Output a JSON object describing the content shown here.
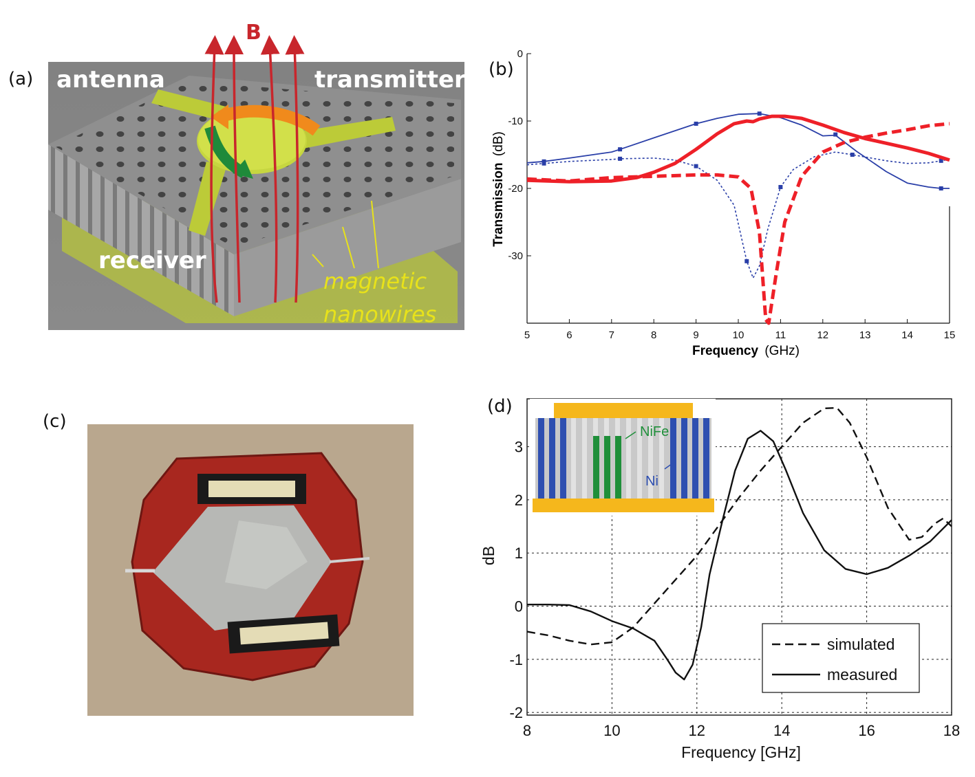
{
  "panel_labels": {
    "a": "(a)",
    "b": "(b)",
    "c": "(c)",
    "d": "(d)"
  },
  "panel_a": {
    "labels": {
      "field": "B",
      "antenna": "antenna",
      "transmitter": "transmitter",
      "receiver": "receiver",
      "wires_line1": "magnetic",
      "wires_line2": "nanowires"
    },
    "colors": {
      "field_lines": "#c8262c",
      "nanowires_label": "#e8e21a",
      "antenna_metal": "#c9d83c",
      "orange_arrow": "#f08a1c",
      "green_arrow": "#1f8a3a"
    }
  },
  "panel_c": {
    "description_colors": {
      "background": "#b9a78e",
      "substrate": "#a8271f",
      "film": "#b7b8b5"
    }
  },
  "chart_data": [
    {
      "panel": "b",
      "type": "line",
      "xlabel": "Frequency",
      "xlabel_unit": "(GHz)",
      "ylabel": "Transmission",
      "ylabel_unit": "(dB)",
      "xlim": [
        5,
        15
      ],
      "ylim": [
        -40,
        0
      ],
      "xticks": [
        5,
        6,
        7,
        8,
        9,
        10,
        11,
        12,
        13,
        14,
        15
      ],
      "yticks": [
        0,
        -10,
        -20,
        -30
      ],
      "grid": false,
      "series": [
        {
          "color": "#2a3fa8",
          "style": "solid",
          "width": 1.8,
          "markers": true,
          "points": [
            [
              5,
              -16.2
            ],
            [
              5.4,
              -16.0
            ],
            [
              6,
              -15.5
            ],
            [
              7,
              -14.6
            ],
            [
              7.2,
              -14.2
            ],
            [
              8,
              -12.5
            ],
            [
              9,
              -10.4
            ],
            [
              9.5,
              -9.6
            ],
            [
              10,
              -9.0
            ],
            [
              10.5,
              -8.9
            ],
            [
              11,
              -9.5
            ],
            [
              11.5,
              -10.6
            ],
            [
              12,
              -12.2
            ],
            [
              12.3,
              -12.1
            ],
            [
              12.8,
              -14.5
            ],
            [
              13.5,
              -17.5
            ],
            [
              14,
              -19.2
            ],
            [
              14.5,
              -19.8
            ],
            [
              14.8,
              -20.0
            ],
            [
              15,
              -20.0
            ]
          ],
          "marker_points": [
            [
              5.4,
              -16.0
            ],
            [
              7.2,
              -14.2
            ],
            [
              9.0,
              -10.4
            ],
            [
              10.5,
              -8.9
            ],
            [
              12.3,
              -12.0
            ],
            [
              14.8,
              -20.0
            ]
          ]
        },
        {
          "color": "#2a3fa8",
          "style": "dotted",
          "width": 1.6,
          "markers": true,
          "points": [
            [
              5,
              -16.5
            ],
            [
              5.4,
              -16.3
            ],
            [
              6,
              -16.0
            ],
            [
              7,
              -15.7
            ],
            [
              7.2,
              -15.6
            ],
            [
              8,
              -15.5
            ],
            [
              8.5,
              -15.8
            ],
            [
              9,
              -16.7
            ],
            [
              9.5,
              -18.8
            ],
            [
              9.9,
              -22.5
            ],
            [
              10.2,
              -30.8
            ],
            [
              10.35,
              -33.3
            ],
            [
              10.5,
              -31.5
            ],
            [
              10.7,
              -26.0
            ],
            [
              11,
              -19.8
            ],
            [
              11.3,
              -17.2
            ],
            [
              11.8,
              -15.3
            ],
            [
              12.3,
              -14.6
            ],
            [
              12.7,
              -15.0
            ],
            [
              13.5,
              -15.9
            ],
            [
              14,
              -16.3
            ],
            [
              14.5,
              -16.2
            ],
            [
              14.8,
              -15.9
            ],
            [
              15,
              -15.7
            ]
          ],
          "marker_points": [
            [
              5.4,
              -16.3
            ],
            [
              7.2,
              -15.6
            ],
            [
              9.0,
              -16.7
            ],
            [
              10.2,
              -30.8
            ],
            [
              11.0,
              -19.8
            ],
            [
              12.7,
              -15.0
            ],
            [
              14.8,
              -15.9
            ]
          ]
        },
        {
          "color": "#ee2028",
          "style": "solid",
          "width": 5,
          "markers": false,
          "points": [
            [
              5,
              -18.8
            ],
            [
              6,
              -19.0
            ],
            [
              7,
              -18.9
            ],
            [
              7.6,
              -18.4
            ],
            [
              8,
              -17.6
            ],
            [
              8.5,
              -16.3
            ],
            [
              9,
              -14.2
            ],
            [
              9.5,
              -11.9
            ],
            [
              9.9,
              -10.4
            ],
            [
              10.2,
              -10.0
            ],
            [
              10.35,
              -10.1
            ],
            [
              10.5,
              -9.7
            ],
            [
              10.8,
              -9.3
            ],
            [
              11.1,
              -9.3
            ],
            [
              11.5,
              -9.6
            ],
            [
              12,
              -10.6
            ],
            [
              12.5,
              -11.7
            ],
            [
              13,
              -12.6
            ],
            [
              13.5,
              -13.3
            ],
            [
              14,
              -14.0
            ],
            [
              14.5,
              -14.8
            ],
            [
              15,
              -15.8
            ]
          ]
        },
        {
          "color": "#ee2028",
          "style": "dashed",
          "width": 5,
          "markers": false,
          "points": [
            [
              5,
              -18.6
            ],
            [
              6,
              -18.9
            ],
            [
              7,
              -18.4
            ],
            [
              8,
              -18.2
            ],
            [
              9,
              -18.0
            ],
            [
              9.5,
              -18.0
            ],
            [
              10,
              -18.3
            ],
            [
              10.3,
              -20.0
            ],
            [
              10.5,
              -26.5
            ],
            [
              10.65,
              -39.5
            ],
            [
              10.72,
              -40
            ],
            [
              10.9,
              -32.5
            ],
            [
              11.1,
              -25.0
            ],
            [
              11.5,
              -18.2
            ],
            [
              12,
              -14.6
            ],
            [
              12.5,
              -13.2
            ],
            [
              13,
              -12.4
            ],
            [
              13.5,
              -11.8
            ],
            [
              14,
              -11.3
            ],
            [
              14.5,
              -10.7
            ],
            [
              15,
              -10.4
            ]
          ]
        }
      ]
    },
    {
      "panel": "d",
      "type": "line",
      "xlabel": "Frequency [GHz]",
      "ylabel": "dB",
      "xlim": [
        8,
        18
      ],
      "ylim": [
        -2.05,
        3.9
      ],
      "xticks": [
        8,
        10,
        12,
        14,
        16,
        18
      ],
      "yticks": [
        -2,
        -1,
        0,
        1,
        2,
        3
      ],
      "grid": true,
      "legend_position": "bottom-right",
      "series": [
        {
          "name": "simulated",
          "color": "#111111",
          "style": "dashed",
          "width": 2.4,
          "points": [
            [
              8,
              -0.48
            ],
            [
              8.5,
              -0.55
            ],
            [
              9,
              -0.65
            ],
            [
              9.5,
              -0.72
            ],
            [
              10,
              -0.68
            ],
            [
              10.5,
              -0.4
            ],
            [
              11,
              0.05
            ],
            [
              11.5,
              0.5
            ],
            [
              12,
              0.95
            ],
            [
              12.5,
              1.5
            ],
            [
              13,
              2.05
            ],
            [
              13.5,
              2.55
            ],
            [
              14,
              3.0
            ],
            [
              14.5,
              3.45
            ],
            [
              15,
              3.72
            ],
            [
              15.3,
              3.73
            ],
            [
              15.6,
              3.45
            ],
            [
              16,
              2.8
            ],
            [
              16.5,
              1.85
            ],
            [
              17,
              1.25
            ],
            [
              17.3,
              1.3
            ],
            [
              17.6,
              1.55
            ],
            [
              17.8,
              1.65
            ],
            [
              18,
              1.5
            ]
          ]
        },
        {
          "name": "measured",
          "color": "#111111",
          "style": "solid",
          "width": 2.4,
          "points": [
            [
              8,
              0.03
            ],
            [
              8.5,
              0.03
            ],
            [
              9,
              0.02
            ],
            [
              9.5,
              -0.1
            ],
            [
              10,
              -0.28
            ],
            [
              10.5,
              -0.42
            ],
            [
              11,
              -0.65
            ],
            [
              11.3,
              -1.0
            ],
            [
              11.5,
              -1.25
            ],
            [
              11.7,
              -1.38
            ],
            [
              11.9,
              -1.1
            ],
            [
              12.1,
              -0.4
            ],
            [
              12.3,
              0.6
            ],
            [
              12.6,
              1.6
            ],
            [
              12.9,
              2.55
            ],
            [
              13.2,
              3.15
            ],
            [
              13.5,
              3.3
            ],
            [
              13.8,
              3.1
            ],
            [
              14.1,
              2.55
            ],
            [
              14.5,
              1.75
            ],
            [
              15,
              1.05
            ],
            [
              15.5,
              0.7
            ],
            [
              16,
              0.6
            ],
            [
              16.5,
              0.72
            ],
            [
              17,
              0.95
            ],
            [
              17.5,
              1.22
            ],
            [
              18,
              1.62
            ]
          ]
        }
      ]
    }
  ],
  "panel_d_inset": {
    "label_nife": "NiFe",
    "label_ni": "Ni",
    "colors": {
      "electrode": "#f5b71c",
      "ni": "#2e4fb0",
      "nife": "#1f8f3a",
      "matrix": "#c9c9c9"
    }
  }
}
